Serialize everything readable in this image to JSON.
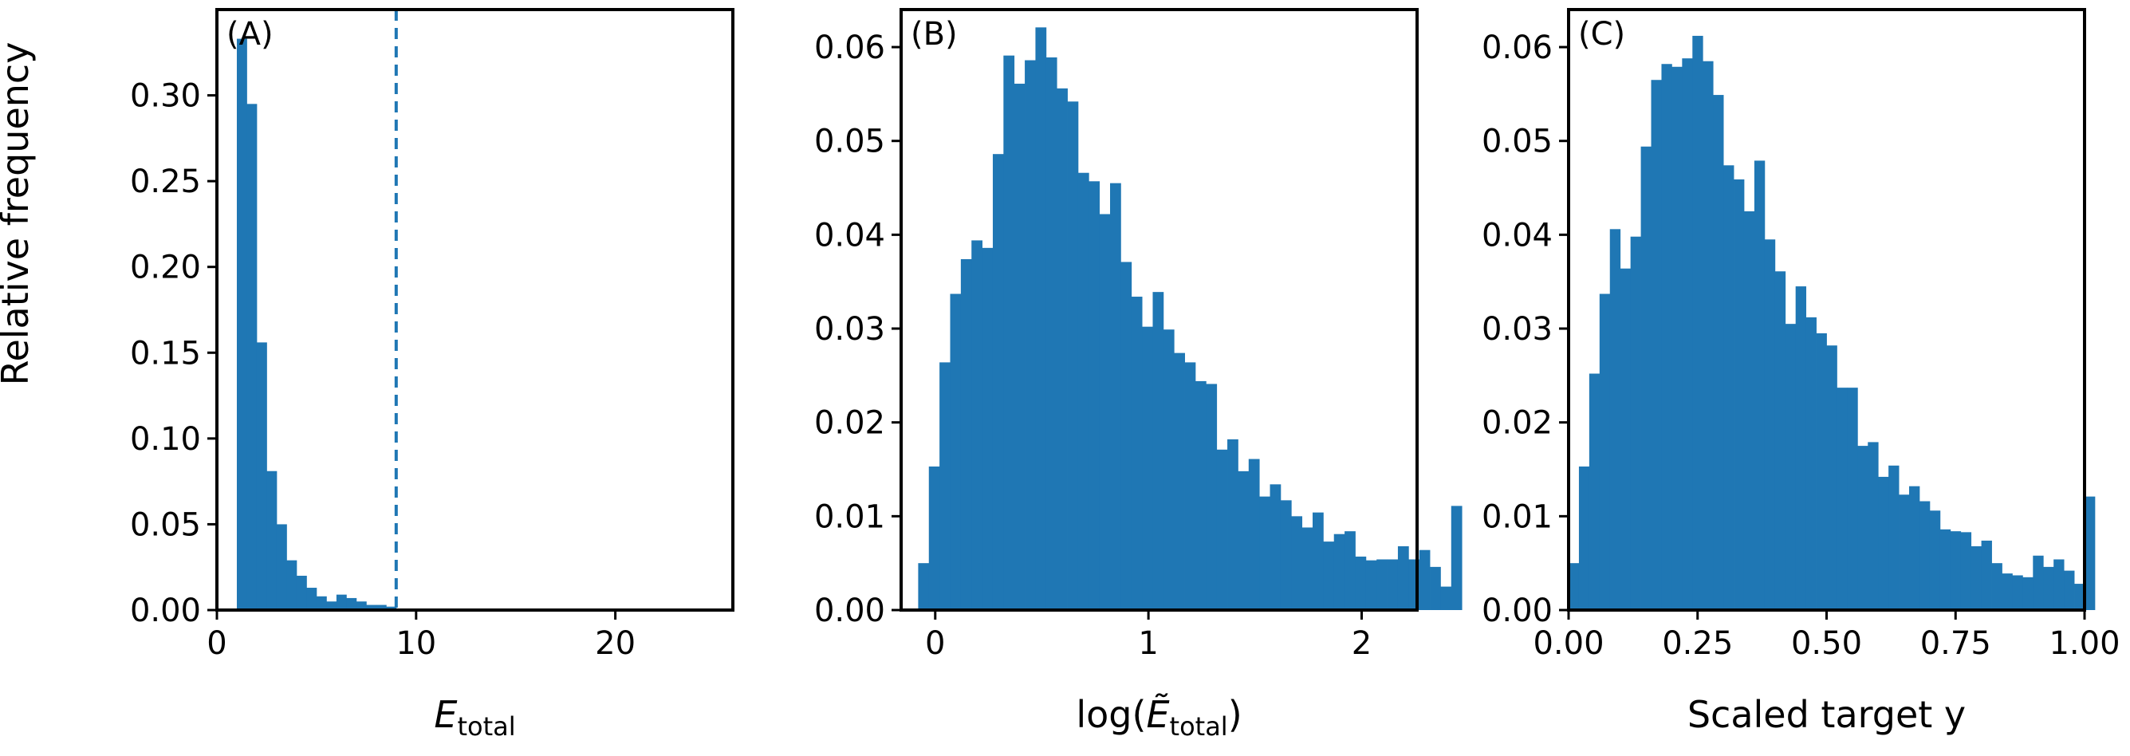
{
  "figure": {
    "ylabel": "Relative frequency",
    "bar_color": "#1f77b4"
  },
  "chart_data": [
    {
      "type": "bar",
      "panel_label": "(A)",
      "xlabel_main": "E",
      "xlabel_sub": "total",
      "xlim": [
        0,
        25.9
      ],
      "ylim": [
        0,
        0.35
      ],
      "xticks": [
        0,
        10,
        20
      ],
      "xtick_labels": [
        "0",
        "10",
        "20"
      ],
      "yticks": [
        0,
        0.05,
        0.1,
        0.15,
        0.2,
        0.25,
        0.3
      ],
      "ytick_labels": [
        "0.00",
        "0.05",
        "0.10",
        "0.15",
        "0.20",
        "0.25",
        "0.30"
      ],
      "bin_start": 1.0,
      "bin_width": 0.5,
      "values": [
        0.333,
        0.295,
        0.156,
        0.081,
        0.05,
        0.029,
        0.02,
        0.013,
        0.008,
        0.005,
        0.009,
        0.007,
        0.005,
        0.003,
        0.003,
        0.002
      ],
      "vline": {
        "x": 9,
        "color": "#1f77b4",
        "style": "dashed"
      }
    },
    {
      "type": "bar",
      "panel_label": "(B)",
      "xlabel_prefix": "log(",
      "xlabel_main": "Ẽ",
      "xlabel_sub": "total",
      "xlabel_suffix": ")",
      "xlim": [
        -0.16,
        2.26
      ],
      "ylim": [
        0,
        0.064
      ],
      "xticks": [
        0,
        1,
        2
      ],
      "xtick_labels": [
        "0",
        "1",
        "2"
      ],
      "yticks": [
        0,
        0.01,
        0.02,
        0.03,
        0.04,
        0.05,
        0.06
      ],
      "ytick_labels": [
        "0.00",
        "0.01",
        "0.02",
        "0.03",
        "0.04",
        "0.05",
        "0.06"
      ],
      "bin_start": -0.08,
      "bin_width": 0.05,
      "values": [
        0.005,
        0.0153,
        0.0264,
        0.0337,
        0.0374,
        0.0394,
        0.0386,
        0.0486,
        0.0591,
        0.0561,
        0.0586,
        0.0621,
        0.0589,
        0.0556,
        0.0542,
        0.0466,
        0.0457,
        0.0422,
        0.0455,
        0.0371,
        0.0334,
        0.0302,
        0.0339,
        0.0299,
        0.0274,
        0.0264,
        0.0244,
        0.0241,
        0.0171,
        0.0182,
        0.0148,
        0.0161,
        0.0121,
        0.0134,
        0.0117,
        0.01,
        0.0088,
        0.0104,
        0.0073,
        0.0081,
        0.0084,
        0.0057,
        0.0053,
        0.0054,
        0.0054,
        0.0068,
        0.0054,
        0.0064,
        0.0046,
        0.0025,
        0.0111
      ]
    },
    {
      "type": "bar",
      "panel_label": "(C)",
      "xlabel_main": "Scaled target y",
      "xlim": [
        0,
        1.0
      ],
      "ylim": [
        0,
        0.064
      ],
      "xticks": [
        0,
        0.25,
        0.5,
        0.75,
        1.0
      ],
      "xtick_labels": [
        "0.00",
        "0.25",
        "0.50",
        "0.75",
        "1.00"
      ],
      "yticks": [
        0,
        0.01,
        0.02,
        0.03,
        0.04,
        0.05,
        0.06
      ],
      "ytick_labels": [
        "0.00",
        "0.01",
        "0.02",
        "0.03",
        "0.04",
        "0.05",
        "0.06"
      ],
      "bin_start": 0.0,
      "bin_width": 0.02,
      "values": [
        0.005,
        0.0153,
        0.0252,
        0.0337,
        0.0406,
        0.0364,
        0.0398,
        0.0494,
        0.0565,
        0.0582,
        0.0579,
        0.0588,
        0.0612,
        0.0585,
        0.0549,
        0.0474,
        0.0459,
        0.0425,
        0.0479,
        0.0395,
        0.0361,
        0.0305,
        0.0345,
        0.0312,
        0.0295,
        0.0282,
        0.0237,
        0.0237,
        0.0175,
        0.0179,
        0.0142,
        0.0154,
        0.0123,
        0.0132,
        0.0116,
        0.0106,
        0.0086,
        0.0084,
        0.0083,
        0.0068,
        0.0074,
        0.005,
        0.0039,
        0.0037,
        0.0035,
        0.0058,
        0.0046,
        0.0054,
        0.0042,
        0.0028,
        0.0121
      ]
    }
  ]
}
